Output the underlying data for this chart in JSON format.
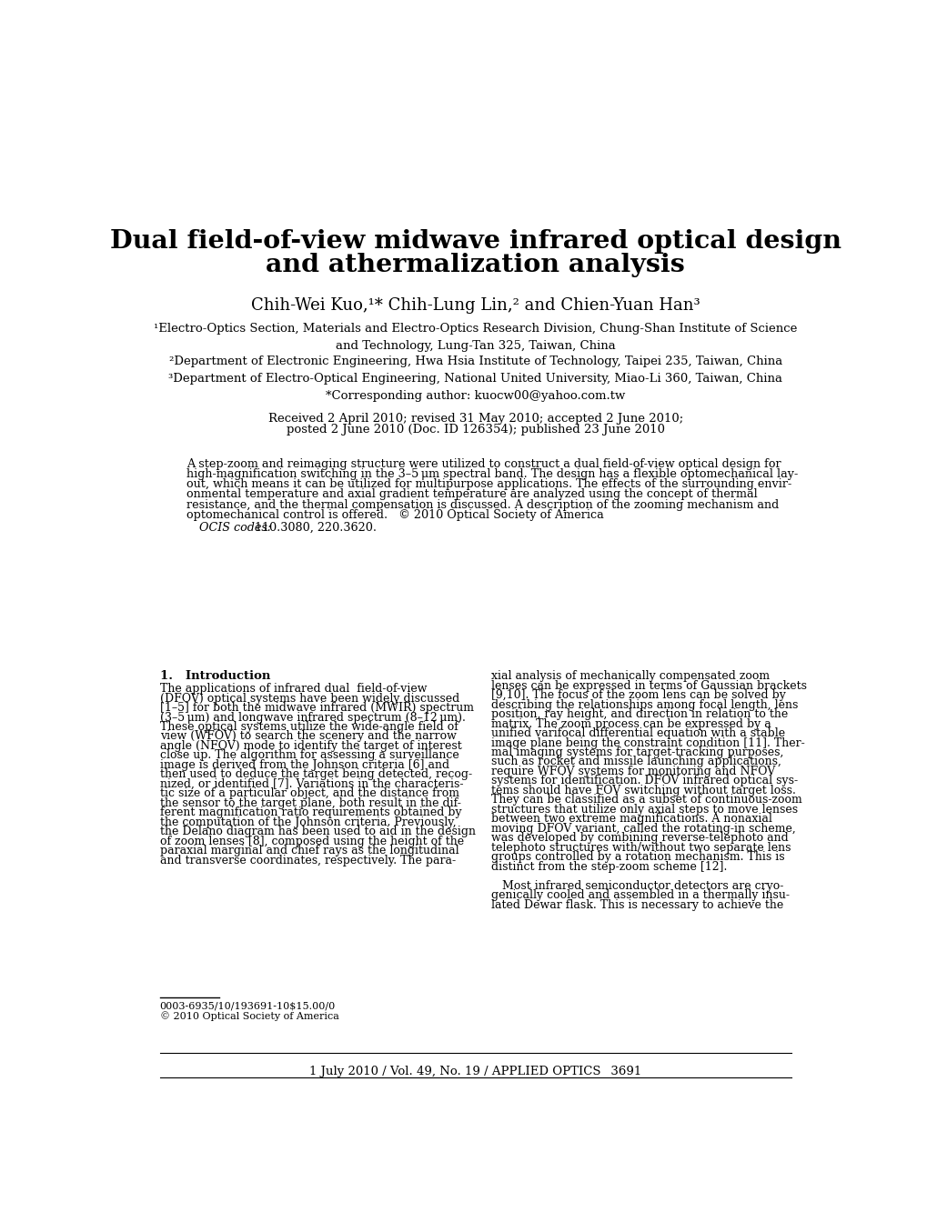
{
  "title_line1": "Dual field-of-view midwave infrared optical design",
  "title_line2": "and athermalization analysis",
  "authors": "Chih-Wei Kuo,¹* Chih-Lung Lin,² and Chien-Yuan Han³",
  "affil1": "¹Electro-Optics Section, Materials and Electro-Optics Research Division, Chung-Shan Institute of Science\nand Technology, Lung-Tan 325, Taiwan, China",
  "affil2": "²Department of Electronic Engineering, Hwa Hsia Institute of Technology, Taipei 235, Taiwan, China",
  "affil3": "³Department of Electro-Optical Engineering, National United University, Miao-Li 360, Taiwan, China",
  "corresponding": "*Corresponding author: kuocw00@yahoo.com.tw",
  "received_line1": "Received 2 April 2010; revised 31 May 2010; accepted 2 June 2010;",
  "received_line2": "posted 2 June 2010 (Doc. ID 126354); published 23 June 2010",
  "abstract_lines": [
    "A step-zoom and reimaging structure were utilized to construct a dual field-of-view optical design for",
    "high-magnification switching in the 3–5 μm spectral band. The design has a flexible optomechanical lay-",
    "out, which means it can be utilized for multipurpose applications. The effects of the surrounding envir-",
    "onmental temperature and axial gradient temperature are analyzed using the concept of thermal",
    "resistance, and the thermal compensation is discussed. A description of the zooming mechanism and",
    "optomechanical control is offered.   © 2010 Optical Society of America"
  ],
  "ocis_italic": "OCIS codes:",
  "ocis_normal": "    110.3080, 220.3620.",
  "footnote1": "0003-6935/10/193691-10$15.00/0",
  "footnote2": "© 2010 Optical Society of America",
  "section1_title_bold": "1.   Introduction",
  "col1_lines": [
    "The applications of infrared dual  field-of-view",
    "(DFOV) optical systems have been widely discussed",
    "[1–5] for both the midwave infrared (MWIR) spectrum",
    "(3–5 μm) and longwave infrared spectrum (8–12 μm).",
    "These optical systems utilize the wide-angle field of",
    "view (WFOV) to search the scenery and the narrow",
    "angle (NFOV) mode to identify the target of interest",
    "close up. The algorithm for assessing a surveillance",
    "image is derived from the Johnson criteria [6] and",
    "then used to deduce the target being detected, recog-",
    "nized, or identified [7]. Variations in the characteris-",
    "tic size of a particular object, and the distance from",
    "the sensor to the target plane, both result in the dif-",
    "ferent magnification ratio requirements obtained by",
    "the computation of the Johnson criteria. Previously,",
    "the Delano diagram has been used to aid in the design",
    "of zoom lenses [8], composed using the height of the",
    "paraxial marginal and chief rays as the longitudinal",
    "and transverse coordinates, respectively. The para-"
  ],
  "col2_lines": [
    "xial analysis of mechanically compensated zoom",
    "lenses can be expressed in terms of Gaussian brackets",
    "[9,10]. The focus of the zoom lens can be solved by",
    "describing the relationships among focal length, lens",
    "position, ray height, and direction in relation to the",
    "matrix. The zoom process can be expressed by a",
    "unified varifocal differential equation with a stable",
    "image plane being the constraint condition [11]. Ther-",
    "mal imaging systems for target-tracking purposes,",
    "such as rocket and missile launching applications,",
    "require WFOV systems for monitoring and NFOV",
    "systems for identification. DFOV infrared optical sys-",
    "tems should have FOV switching without target loss.",
    "They can be classified as a subset of continuous-zoom",
    "structures that utilize only axial steps to move lenses",
    "between two extreme magnifications. A nonaxial",
    "moving DFOV variant, called the rotating-in scheme,",
    "was developed by combining reverse-telephoto and",
    "telephoto structures with/without two separate lens",
    "groups controlled by a rotation mechanism. This is",
    "distinct from the step-zoom scheme [12].",
    "",
    "   Most infrared semiconductor detectors are cryo-",
    "genically cooled and assembled in a thermally insu-",
    "lated Dewar flask. This is necessary to achieve the"
  ],
  "footer": "1 July 2010 / Vol. 49, No. 19 / APPLIED OPTICS  3691",
  "bg_color": "#ffffff",
  "text_color": "#000000"
}
